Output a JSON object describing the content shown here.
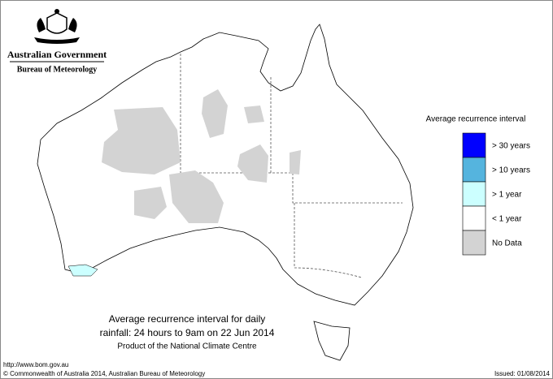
{
  "header": {
    "title": "Australian Government",
    "subtitle": "Bureau of Meteorology"
  },
  "legend": {
    "title": "Average recurrence interval",
    "items": [
      {
        "label": "> 30 years",
        "color": "#0000ff"
      },
      {
        "label": "> 10 years",
        "color": "#55b4de"
      },
      {
        "label": "> 1 year",
        "color": "#ccffff"
      },
      {
        "label": "< 1 year",
        "color": "#ffffff"
      },
      {
        "label": "No Data",
        "color": "#d3d3d3"
      }
    ]
  },
  "caption": {
    "line1": "Average recurrence interval for daily",
    "line2": "rainfall: 24 hours to 9am on 22 Jun 2014",
    "line3": "Product of the National Climate Centre"
  },
  "footer": {
    "url": "http://www.bom.gov.au",
    "copyright": "© Commonwealth of Australia 2014, Australian Bureau of Meteorology",
    "issued": "Issued: 01/08/2014"
  }
}
